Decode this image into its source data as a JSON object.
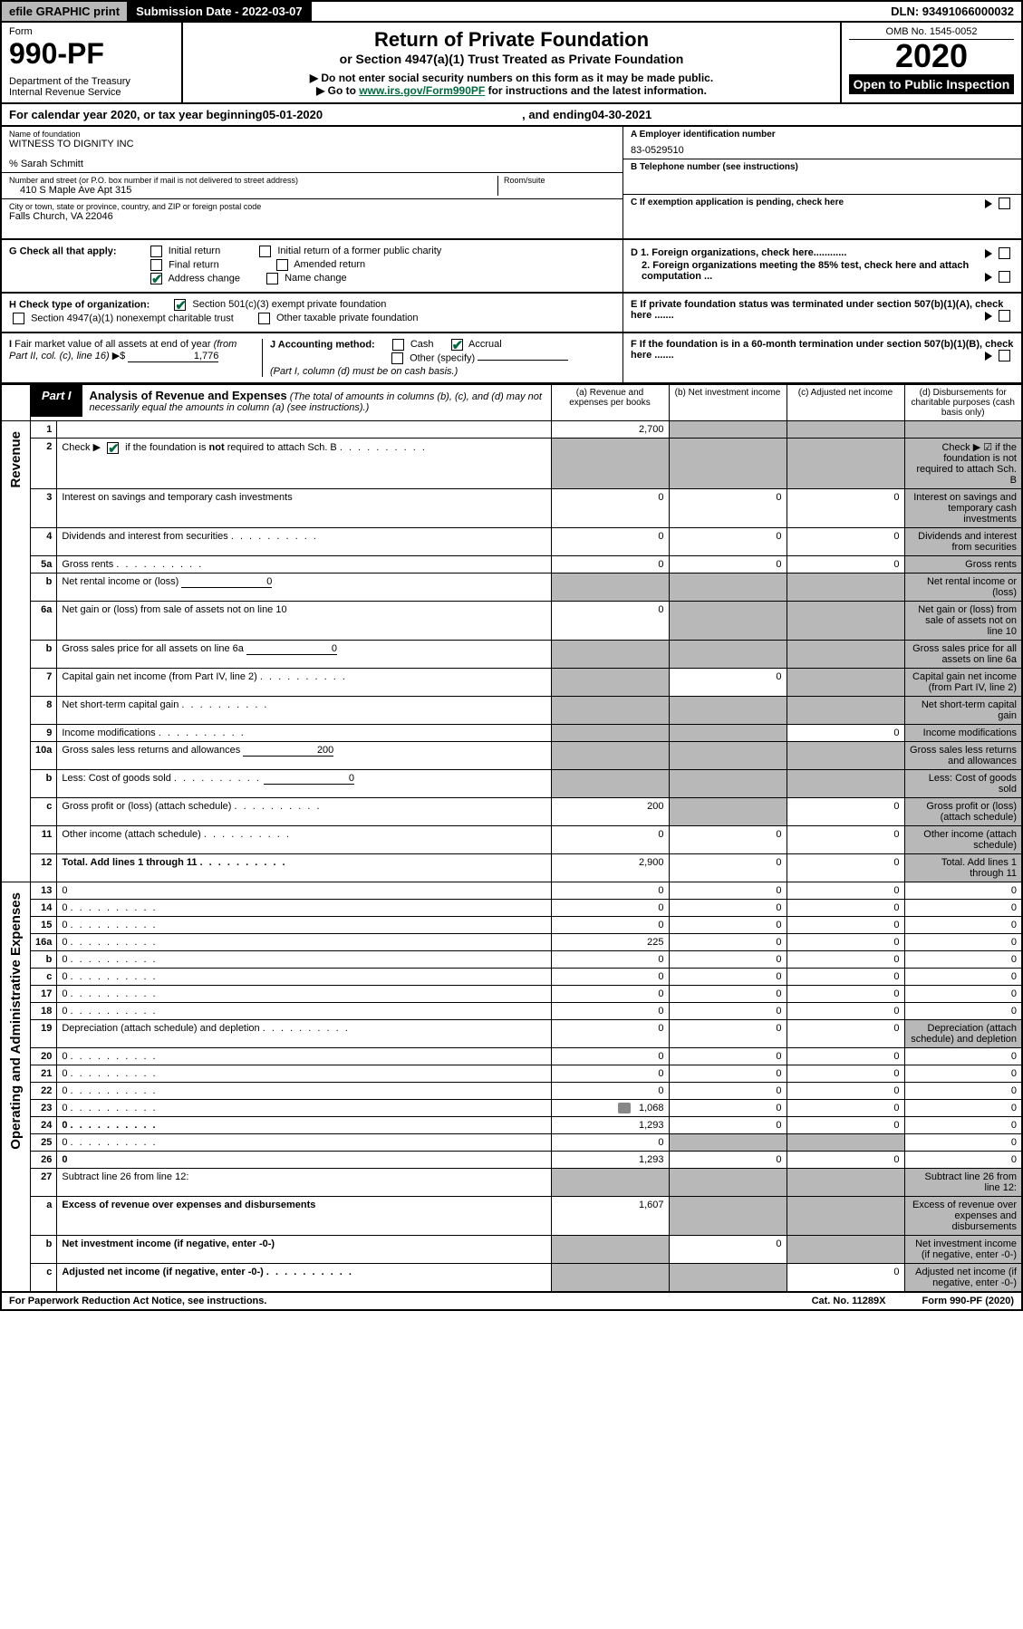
{
  "top": {
    "efile": "efile GRAPHIC print",
    "sub_label": "Submission Date - 2022-03-07",
    "dln": "DLN: 93491066000032"
  },
  "header": {
    "form_label": "Form",
    "form_num": "990-PF",
    "dept": "Department of the Treasury\nInternal Revenue Service",
    "title": "Return of Private Foundation",
    "subtitle": "or Section 4947(a)(1) Trust Treated as Private Foundation",
    "note1": "▶ Do not enter social security numbers on this form as it may be made public.",
    "note2_pre": "▶ Go to ",
    "note2_link": "www.irs.gov/Form990PF",
    "note2_post": " for instructions and the latest information.",
    "omb": "OMB No. 1545-0052",
    "year": "2020",
    "open": "Open to Public Inspection"
  },
  "cal": {
    "pre": "For calendar year 2020, or tax year beginning ",
    "begin": "05-01-2020",
    "mid": ", and ending ",
    "end": "04-30-2021"
  },
  "entity": {
    "name_label": "Name of foundation",
    "name": "WITNESS TO DIGNITY INC",
    "care_of": "% Sarah Schmitt",
    "addr_label": "Number and street (or P.O. box number if mail is not delivered to street address)",
    "addr": "410 S Maple Ave Apt 315",
    "room_label": "Room/suite",
    "city_label": "City or town, state or province, country, and ZIP or foreign postal code",
    "city": "Falls Church, VA  22046",
    "a_label": "A Employer identification number",
    "a_val": "83-0529510",
    "b_label": "B Telephone number (see instructions)",
    "c_label": "C If exemption application is pending, check here",
    "d1": "D 1. Foreign organizations, check here............",
    "d2": "2. Foreign organizations meeting the 85% test, check here and attach computation ...",
    "e": "E  If private foundation status was terminated under section 507(b)(1)(A), check here .......",
    "f": "F  If the foundation is in a 60-month termination under section 507(b)(1)(B), check here .......",
    "g_label": "G Check all that apply:",
    "g_opts": [
      "Initial return",
      "Initial return of a former public charity",
      "Final return",
      "Amended return",
      "Address change",
      "Name change"
    ],
    "h_label": "H Check type of organization:",
    "h_opts": [
      "Section 501(c)(3) exempt private foundation",
      "Section 4947(a)(1) nonexempt charitable trust",
      "Other taxable private foundation"
    ],
    "i_label": "I Fair market value of all assets at end of year (from Part II, col. (c), line 16) ▶$ ",
    "i_val": "1,776",
    "j_label": "J Accounting method:",
    "j_opts": [
      "Cash",
      "Accrual",
      "Other (specify)"
    ],
    "j_note": "(Part I, column (d) must be on cash basis.)"
  },
  "part1": {
    "label": "Part I",
    "title": "Analysis of Revenue and Expenses",
    "title_note": " (The total of amounts in columns (b), (c), and (d) may not necessarily equal the amounts in column (a) (see instructions).)",
    "col_a": "(a)  Revenue and expenses per books",
    "col_b": "(b)  Net investment income",
    "col_c": "(c)  Adjusted net income",
    "col_d": "(d)  Disbursements for charitable purposes (cash basis only)"
  },
  "side_rev": "Revenue",
  "side_exp": "Operating and Administrative Expenses",
  "rows": [
    {
      "n": "1",
      "d": null,
      "a": "2,700",
      "b": null,
      "c": null,
      "bg": true,
      "cg": true,
      "dg": true
    },
    {
      "n": "2",
      "d": "Check ▶ ☑ if the foundation is not required to attach Sch. B",
      "dots": true,
      "ag": true,
      "bg": true,
      "cg": true,
      "dg": true
    },
    {
      "n": "3",
      "d": "Interest on savings and temporary cash investments",
      "a": "0",
      "b": "0",
      "c": "0",
      "dg": true
    },
    {
      "n": "4",
      "d": "Dividends and interest from securities",
      "dots": true,
      "a": "0",
      "b": "0",
      "c": "0",
      "dg": true
    },
    {
      "n": "5a",
      "d": "Gross rents",
      "dots": true,
      "a": "0",
      "b": "0",
      "c": "0",
      "dg": true
    },
    {
      "n": "b",
      "d": "Net rental income or (loss)",
      "inline": "0",
      "ag": true,
      "bg": true,
      "cg": true,
      "dg": true
    },
    {
      "n": "6a",
      "d": "Net gain or (loss) from sale of assets not on line 10",
      "a": "0",
      "bg": true,
      "cg": true,
      "dg": true
    },
    {
      "n": "b",
      "d": "Gross sales price for all assets on line 6a",
      "inline": "0",
      "ag": true,
      "bg": true,
      "cg": true,
      "dg": true
    },
    {
      "n": "7",
      "d": "Capital gain net income (from Part IV, line 2)",
      "dots": true,
      "ag": true,
      "b": "0",
      "cg": true,
      "dg": true
    },
    {
      "n": "8",
      "d": "Net short-term capital gain",
      "dots": true,
      "ag": true,
      "bg": true,
      "cg": true,
      "dg": true
    },
    {
      "n": "9",
      "d": "Income modifications",
      "dots": true,
      "ag": true,
      "bg": true,
      "c": "0",
      "dg": true
    },
    {
      "n": "10a",
      "d": "Gross sales less returns and allowances",
      "inline": "200",
      "ag": true,
      "bg": true,
      "cg": true,
      "dg": true
    },
    {
      "n": "b",
      "d": "Less: Cost of goods sold",
      "dots": true,
      "inline": "0",
      "ag": true,
      "bg": true,
      "cg": true,
      "dg": true
    },
    {
      "n": "c",
      "d": "Gross profit or (loss) (attach schedule)",
      "dots": true,
      "a": "200",
      "bg": true,
      "c": "0",
      "dg": true
    },
    {
      "n": "11",
      "d": "Other income (attach schedule)",
      "dots": true,
      "a": "0",
      "b": "0",
      "c": "0",
      "dg": true
    },
    {
      "n": "12",
      "d": "Total. Add lines 1 through 11",
      "dots": true,
      "bold": true,
      "a": "2,900",
      "b": "0",
      "c": "0",
      "dg": true
    },
    {
      "n": "13",
      "d": "0",
      "a": "0",
      "b": "0",
      "c": "0"
    },
    {
      "n": "14",
      "d": "0",
      "dots": true,
      "a": "0",
      "b": "0",
      "c": "0"
    },
    {
      "n": "15",
      "d": "0",
      "dots": true,
      "a": "0",
      "b": "0",
      "c": "0"
    },
    {
      "n": "16a",
      "d": "0",
      "dots": true,
      "a": "225",
      "b": "0",
      "c": "0"
    },
    {
      "n": "b",
      "d": "0",
      "dots": true,
      "a": "0",
      "b": "0",
      "c": "0"
    },
    {
      "n": "c",
      "d": "0",
      "dots": true,
      "a": "0",
      "b": "0",
      "c": "0"
    },
    {
      "n": "17",
      "d": "0",
      "dots": true,
      "a": "0",
      "b": "0",
      "c": "0"
    },
    {
      "n": "18",
      "d": "0",
      "dots": true,
      "a": "0",
      "b": "0",
      "c": "0"
    },
    {
      "n": "19",
      "d": "Depreciation (attach schedule) and depletion",
      "dots": true,
      "a": "0",
      "b": "0",
      "c": "0",
      "dg": true
    },
    {
      "n": "20",
      "d": "0",
      "dots": true,
      "a": "0",
      "b": "0",
      "c": "0"
    },
    {
      "n": "21",
      "d": "0",
      "dots": true,
      "a": "0",
      "b": "0",
      "c": "0"
    },
    {
      "n": "22",
      "d": "0",
      "dots": true,
      "a": "0",
      "b": "0",
      "c": "0"
    },
    {
      "n": "23",
      "d": "0",
      "dots": true,
      "icon": true,
      "a": "1,068",
      "b": "0",
      "c": "0"
    },
    {
      "n": "24",
      "d": "0",
      "dots": true,
      "bold": true,
      "a": "1,293",
      "b": "0",
      "c": "0"
    },
    {
      "n": "25",
      "d": "0",
      "dots": true,
      "a": "0",
      "bg": true,
      "cg": true
    },
    {
      "n": "26",
      "d": "0",
      "bold": true,
      "a": "1,293",
      "b": "0",
      "c": "0"
    },
    {
      "n": "27",
      "d": "Subtract line 26 from line 12:",
      "ag": true,
      "bg": true,
      "cg": true,
      "dg": true
    },
    {
      "n": "a",
      "d": "Excess of revenue over expenses and disbursements",
      "bold": true,
      "a": "1,607",
      "bg": true,
      "cg": true,
      "dg": true
    },
    {
      "n": "b",
      "d": "Net investment income (if negative, enter -0-)",
      "bold": true,
      "ag": true,
      "b": "0",
      "cg": true,
      "dg": true
    },
    {
      "n": "c",
      "d": "Adjusted net income (if negative, enter -0-)",
      "dots": true,
      "bold": true,
      "ag": true,
      "bg": true,
      "c": "0",
      "dg": true
    }
  ],
  "footer": {
    "left": "For Paperwork Reduction Act Notice, see instructions.",
    "mid": "Cat. No. 11289X",
    "right": "Form 990-PF (2020)"
  },
  "colors": {
    "green": "#006b3f",
    "gray_cell": "#b8b8b8",
    "black": "#000000"
  }
}
